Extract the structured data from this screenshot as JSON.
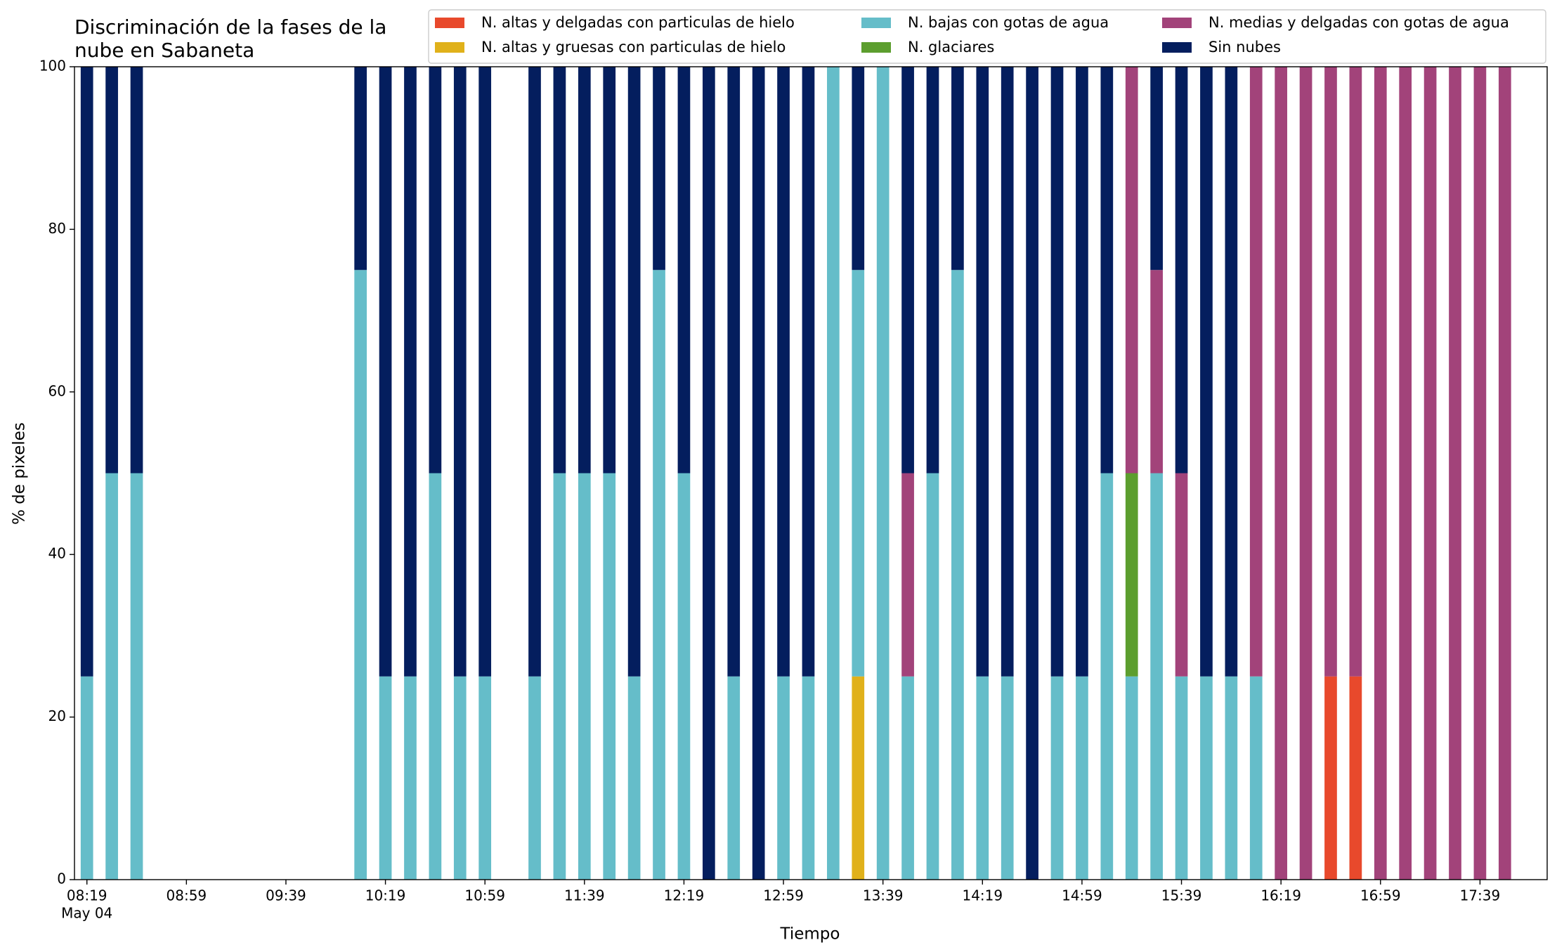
{
  "chart_data": {
    "type": "stacked_bar",
    "title": [
      "Discriminación de la fases de la",
      "nube en Sabaneta"
    ],
    "xlabel": "Tiempo",
    "ylabel": "% de pixeles",
    "date_label": "May 04",
    "x": [
      "08:19",
      "08:29",
      "08:39",
      "10:09",
      "10:19",
      "10:29",
      "10:39",
      "10:49",
      "10:59",
      "11:19",
      "11:29",
      "11:39",
      "11:49",
      "11:59",
      "12:09",
      "12:19",
      "12:29",
      "12:39",
      "12:49",
      "12:59",
      "13:09",
      "13:19",
      "13:29",
      "13:39",
      "13:49",
      "13:59",
      "14:09",
      "14:19",
      "14:29",
      "14:39",
      "14:49",
      "14:59",
      "15:09",
      "15:19",
      "15:29",
      "15:39",
      "15:49",
      "15:59",
      "16:09",
      "16:19",
      "16:29",
      "16:39",
      "16:49",
      "16:59",
      "17:09",
      "17:19",
      "17:29",
      "17:39",
      "17:49"
    ],
    "series": [
      {
        "name": "N. altas y delgadas con particulas de hielo",
        "color": "#e8492c",
        "values": [
          0,
          0,
          0,
          0,
          0,
          0,
          0,
          0,
          0,
          0,
          0,
          0,
          0,
          0,
          0,
          0,
          0,
          0,
          0,
          0,
          0,
          0,
          0,
          0,
          0,
          0,
          0,
          0,
          0,
          0,
          0,
          0,
          0,
          0,
          0,
          0,
          0,
          0,
          0,
          0,
          0,
          25,
          25,
          0,
          0,
          0,
          0,
          0,
          0
        ]
      },
      {
        "name": "N. altas y gruesas con particulas de hielo",
        "color": "#e0b11a",
        "values": [
          0,
          0,
          0,
          0,
          0,
          0,
          0,
          0,
          0,
          0,
          0,
          0,
          0,
          0,
          0,
          0,
          0,
          0,
          0,
          0,
          0,
          0,
          25,
          0,
          0,
          0,
          0,
          0,
          0,
          0,
          0,
          0,
          0,
          0,
          0,
          0,
          0,
          0,
          0,
          0,
          0,
          0,
          0,
          0,
          0,
          0,
          0,
          0,
          0
        ]
      },
      {
        "name": "N. bajas con gotas de agua",
        "color": "#65bdc9",
        "values": [
          25,
          50,
          50,
          75,
          25,
          25,
          50,
          25,
          25,
          25,
          50,
          50,
          50,
          25,
          75,
          50,
          0,
          25,
          0,
          25,
          25,
          100,
          50,
          100,
          25,
          50,
          75,
          25,
          25,
          0,
          25,
          25,
          50,
          25,
          50,
          25,
          25,
          25,
          25,
          0,
          0,
          0,
          0,
          0,
          0,
          0,
          0,
          0,
          0
        ]
      },
      {
        "name": "N. glaciares",
        "color": "#5c9e2e",
        "values": [
          0,
          0,
          0,
          0,
          0,
          0,
          0,
          0,
          0,
          0,
          0,
          0,
          0,
          0,
          0,
          0,
          0,
          0,
          0,
          0,
          0,
          0,
          0,
          0,
          0,
          0,
          0,
          0,
          0,
          0,
          0,
          0,
          0,
          25,
          0,
          0,
          0,
          0,
          0,
          0,
          0,
          0,
          0,
          0,
          0,
          0,
          0,
          0,
          0
        ]
      },
      {
        "name": "N. medias y delgadas con gotas de agua",
        "color": "#a2437a",
        "values": [
          0,
          0,
          0,
          0,
          0,
          0,
          0,
          0,
          0,
          0,
          0,
          0,
          0,
          0,
          0,
          0,
          0,
          0,
          0,
          0,
          0,
          0,
          0,
          0,
          25,
          0,
          0,
          0,
          0,
          0,
          0,
          0,
          0,
          50,
          25,
          25,
          0,
          0,
          75,
          100,
          100,
          75,
          75,
          100,
          100,
          100,
          100,
          100,
          100
        ]
      },
      {
        "name": "Sin nubes",
        "color": "#041e5e",
        "values": [
          75,
          50,
          50,
          25,
          75,
          75,
          50,
          75,
          75,
          75,
          50,
          50,
          50,
          75,
          25,
          50,
          100,
          75,
          100,
          75,
          75,
          0,
          25,
          0,
          50,
          50,
          25,
          75,
          75,
          100,
          75,
          75,
          50,
          0,
          25,
          50,
          75,
          75,
          0,
          0,
          0,
          0,
          0,
          0,
          0,
          0,
          0,
          0,
          0
        ]
      }
    ],
    "xlim": [
      "08:14",
      "18:06"
    ],
    "xticks": [
      "08:19",
      "08:59",
      "09:39",
      "10:19",
      "10:59",
      "11:39",
      "12:19",
      "12:59",
      "13:39",
      "14:19",
      "14:59",
      "15:39",
      "16:19",
      "16:59",
      "17:39"
    ],
    "ylim": [
      0,
      100
    ],
    "yticks": [
      0,
      20,
      40,
      60,
      80,
      100
    ],
    "grid": false,
    "legend": "upper right"
  }
}
